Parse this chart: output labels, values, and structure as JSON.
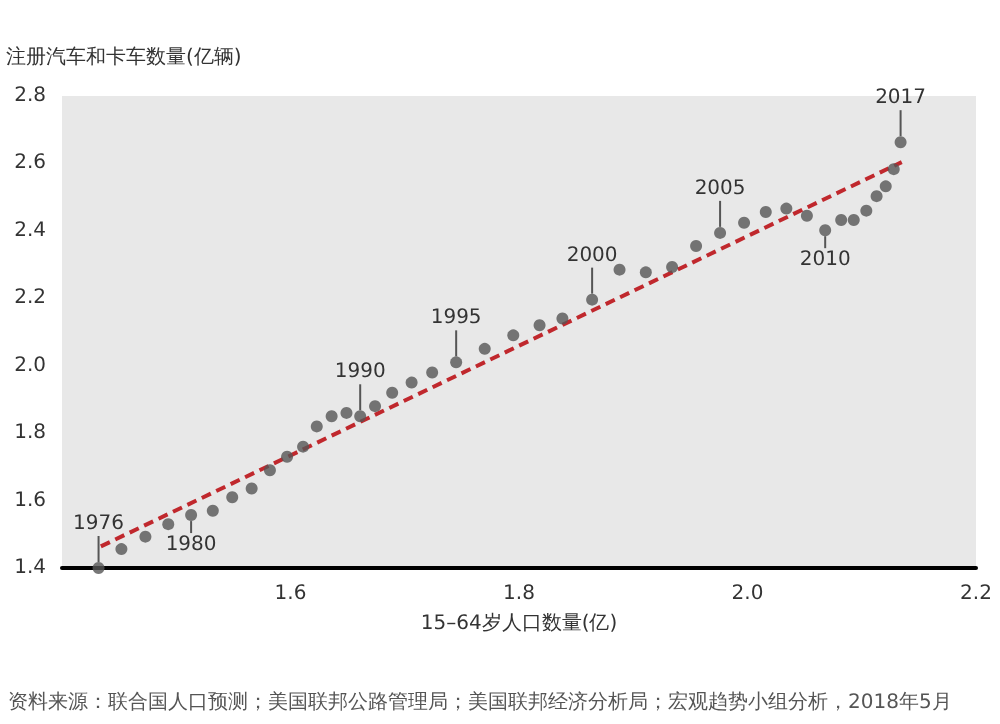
{
  "chart_data": {
    "type": "scatter",
    "ylabel": "注册汽车和卡车数量(亿辆)",
    "xlabel": "15–64岁人口数量(亿)",
    "xlim": [
      1.4,
      2.2
    ],
    "xticks": [
      1.6,
      1.8,
      {
        "value": 2,
        "label": "2.0"
      },
      2.2
    ],
    "ylim": [
      1.4,
      2.8
    ],
    "yticks": [
      1.4,
      1.6,
      1.8,
      {
        "value": 2,
        "label": "2.0"
      },
      2.2,
      2.4,
      2.6,
      2.8
    ],
    "marker": "circle",
    "series": [
      {
        "color": "#555555",
        "x": [
          1.432,
          1.452,
          1.473,
          1.493,
          1.513,
          1.532,
          1.549,
          1.566,
          1.582,
          1.597,
          1.611,
          1.623,
          1.636,
          1.649,
          1.661,
          1.674,
          1.689,
          1.706,
          1.724,
          1.745,
          1.77,
          1.795,
          1.818,
          1.838,
          1.864,
          1.888,
          1.911,
          1.934,
          1.955,
          1.976,
          1.997,
          2.016,
          2.034,
          2.052,
          2.068,
          2.082,
          2.093,
          2.104,
          2.113,
          2.121,
          2.128,
          2.134
        ],
        "values": [
          1.4,
          1.456,
          1.493,
          1.53,
          1.557,
          1.57,
          1.61,
          1.636,
          1.69,
          1.73,
          1.76,
          1.82,
          1.85,
          1.86,
          1.85,
          1.88,
          1.92,
          1.95,
          1.98,
          2.01,
          2.05,
          2.09,
          2.12,
          2.14,
          2.196,
          2.285,
          2.277,
          2.293,
          2.355,
          2.394,
          2.424,
          2.456,
          2.466,
          2.445,
          2.402,
          2.432,
          2.432,
          2.46,
          2.503,
          2.532,
          2.583,
          2.663
        ]
      },
      {
        "type": "line",
        "color": "#c0282d",
        "line_style": "dashed",
        "marker": "none",
        "x": [
          1.434,
          2.135
        ],
        "values": [
          1.464,
          2.604
        ]
      }
    ],
    "annotations": [
      {
        "text": "1976",
        "x": 1.432,
        "y": 1.4
      },
      {
        "text": "1980",
        "x": 1.513,
        "y": 1.557
      },
      {
        "text": "1990",
        "x": 1.661,
        "y": 1.85
      },
      {
        "text": "1995",
        "x": 1.745,
        "y": 2.01
      },
      {
        "text": "2000",
        "x": 1.864,
        "y": 2.196
      },
      {
        "text": "2005",
        "x": 1.976,
        "y": 2.394
      },
      {
        "text": "2010",
        "x": 2.068,
        "y": 2.402
      },
      {
        "text": "2017",
        "x": 2.134,
        "y": 2.663
      },
      "资料来源：联合国人口预测；美国联邦公路管理局；美国联邦经济分析局；宏观趋势小组分析，2018年5月"
    ]
  }
}
